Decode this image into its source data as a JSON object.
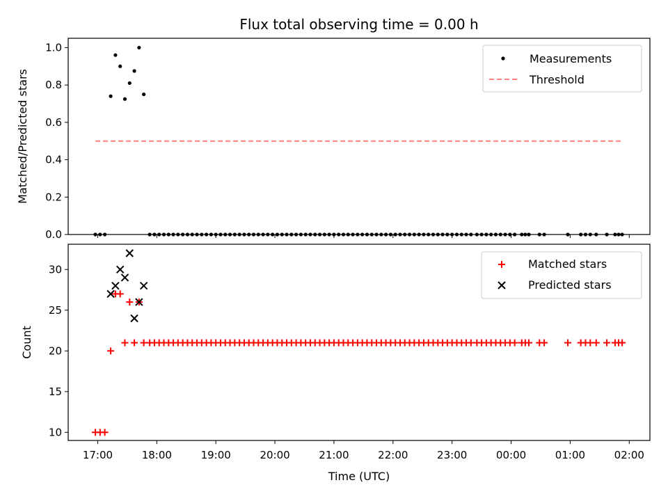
{
  "chart_data": {
    "title": "Flux total observing time = 0.00 h",
    "x_label": "Time (UTC)",
    "x_ticks": [
      "17:00",
      "18:00",
      "19:00",
      "20:00",
      "21:00",
      "22:00",
      "23:00",
      "00:00",
      "01:00",
      "02:00"
    ],
    "x_ticks_hours": [
      17,
      18,
      19,
      20,
      21,
      22,
      23,
      24,
      25,
      26
    ],
    "x_range_hours": [
      16.5,
      26.35
    ],
    "panels": [
      {
        "type": "scatter",
        "ylabel": "Matched/Predicted stars",
        "ylim": [
          0,
          1.05
        ],
        "yticks": [
          0.0,
          0.2,
          0.4,
          0.6,
          0.8,
          1.0
        ],
        "ytick_labels": [
          "0.0",
          "0.2",
          "0.4",
          "0.6",
          "0.8",
          "1.0"
        ],
        "legend_position": "top-right",
        "series": [
          {
            "name": "Measurements",
            "marker": "dot",
            "color": "#000000",
            "high_points": [
              [
                17.22,
                0.74
              ],
              [
                17.3,
                0.96
              ],
              [
                17.38,
                0.9
              ],
              [
                17.46,
                0.725
              ],
              [
                17.54,
                0.81
              ],
              [
                17.62,
                0.875
              ],
              [
                17.7,
                1.0
              ],
              [
                17.78,
                0.75
              ]
            ],
            "zero_points_hours": [
              16.96,
              17.04,
              17.12,
              17.88,
              17.96,
              18.04,
              18.12,
              18.2,
              18.28,
              18.36,
              18.44,
              18.52,
              18.6,
              18.68,
              18.76,
              18.84,
              18.92,
              19.0,
              19.08,
              19.16,
              19.24,
              19.32,
              19.4,
              19.48,
              19.56,
              19.64,
              19.72,
              19.8,
              19.88,
              19.96,
              20.04,
              20.12,
              20.2,
              20.28,
              20.36,
              20.44,
              20.52,
              20.6,
              20.68,
              20.76,
              20.84,
              20.92,
              21.0,
              21.08,
              21.16,
              21.24,
              21.32,
              21.4,
              21.48,
              21.56,
              21.64,
              21.72,
              21.8,
              21.88,
              21.96,
              22.04,
              22.12,
              22.2,
              22.28,
              22.36,
              22.44,
              22.52,
              22.6,
              22.68,
              22.76,
              22.84,
              22.92,
              23.0,
              23.08,
              23.16,
              23.24,
              23.32,
              23.42,
              23.5,
              23.58,
              23.66,
              23.74,
              23.82,
              23.9,
              23.98,
              24.06,
              24.18,
              24.24,
              24.3,
              24.48,
              24.56,
              24.96,
              25.18,
              25.26,
              25.34,
              25.44,
              25.62,
              25.76,
              25.82,
              25.88
            ]
          },
          {
            "name": "Threshold",
            "style": "dashed",
            "color": "#ff7f7f",
            "x": [
              16.96,
              25.88
            ],
            "y": [
              0.5,
              0.5
            ]
          }
        ]
      },
      {
        "type": "scatter",
        "ylabel": "Count",
        "ylim": [
          9,
          33.1
        ],
        "yticks": [
          10,
          15,
          20,
          25,
          30
        ],
        "ytick_labels": [
          "10",
          "15",
          "20",
          "25",
          "30"
        ],
        "legend_position": "top-right",
        "series": [
          {
            "name": "Matched stars",
            "marker": "plus",
            "color": "#ff0000",
            "points": [
              [
                16.96,
                10
              ],
              [
                17.04,
                10
              ],
              [
                17.12,
                10
              ],
              [
                17.22,
                20
              ],
              [
                17.3,
                27
              ],
              [
                17.38,
                27
              ],
              [
                17.54,
                26
              ],
              [
                17.7,
                26
              ]
            ],
            "flat_value": 21,
            "flat_points_hours": [
              17.46,
              17.62,
              17.78,
              17.88,
              17.96,
              18.04,
              18.12,
              18.2,
              18.28,
              18.36,
              18.44,
              18.52,
              18.6,
              18.68,
              18.76,
              18.84,
              18.92,
              19.0,
              19.08,
              19.16,
              19.24,
              19.32,
              19.4,
              19.48,
              19.56,
              19.64,
              19.72,
              19.8,
              19.88,
              19.96,
              20.04,
              20.12,
              20.2,
              20.28,
              20.36,
              20.44,
              20.52,
              20.6,
              20.68,
              20.76,
              20.84,
              20.92,
              21.0,
              21.08,
              21.16,
              21.24,
              21.32,
              21.4,
              21.48,
              21.56,
              21.64,
              21.72,
              21.8,
              21.88,
              21.96,
              22.04,
              22.12,
              22.2,
              22.28,
              22.36,
              22.44,
              22.52,
              22.6,
              22.68,
              22.76,
              22.84,
              22.92,
              23.0,
              23.08,
              23.16,
              23.24,
              23.32,
              23.42,
              23.5,
              23.58,
              23.66,
              23.74,
              23.82,
              23.9,
              23.98,
              24.06,
              24.18,
              24.24,
              24.3,
              24.48,
              24.56,
              24.96,
              25.18,
              25.26,
              25.34,
              25.44,
              25.62,
              25.76,
              25.82,
              25.88
            ]
          },
          {
            "name": "Predicted stars",
            "marker": "x",
            "color": "#000000",
            "points": [
              [
                17.22,
                27
              ],
              [
                17.3,
                28
              ],
              [
                17.38,
                30
              ],
              [
                17.46,
                29
              ],
              [
                17.54,
                32
              ],
              [
                17.62,
                24
              ],
              [
                17.7,
                26
              ],
              [
                17.78,
                28
              ]
            ]
          }
        ]
      }
    ]
  }
}
